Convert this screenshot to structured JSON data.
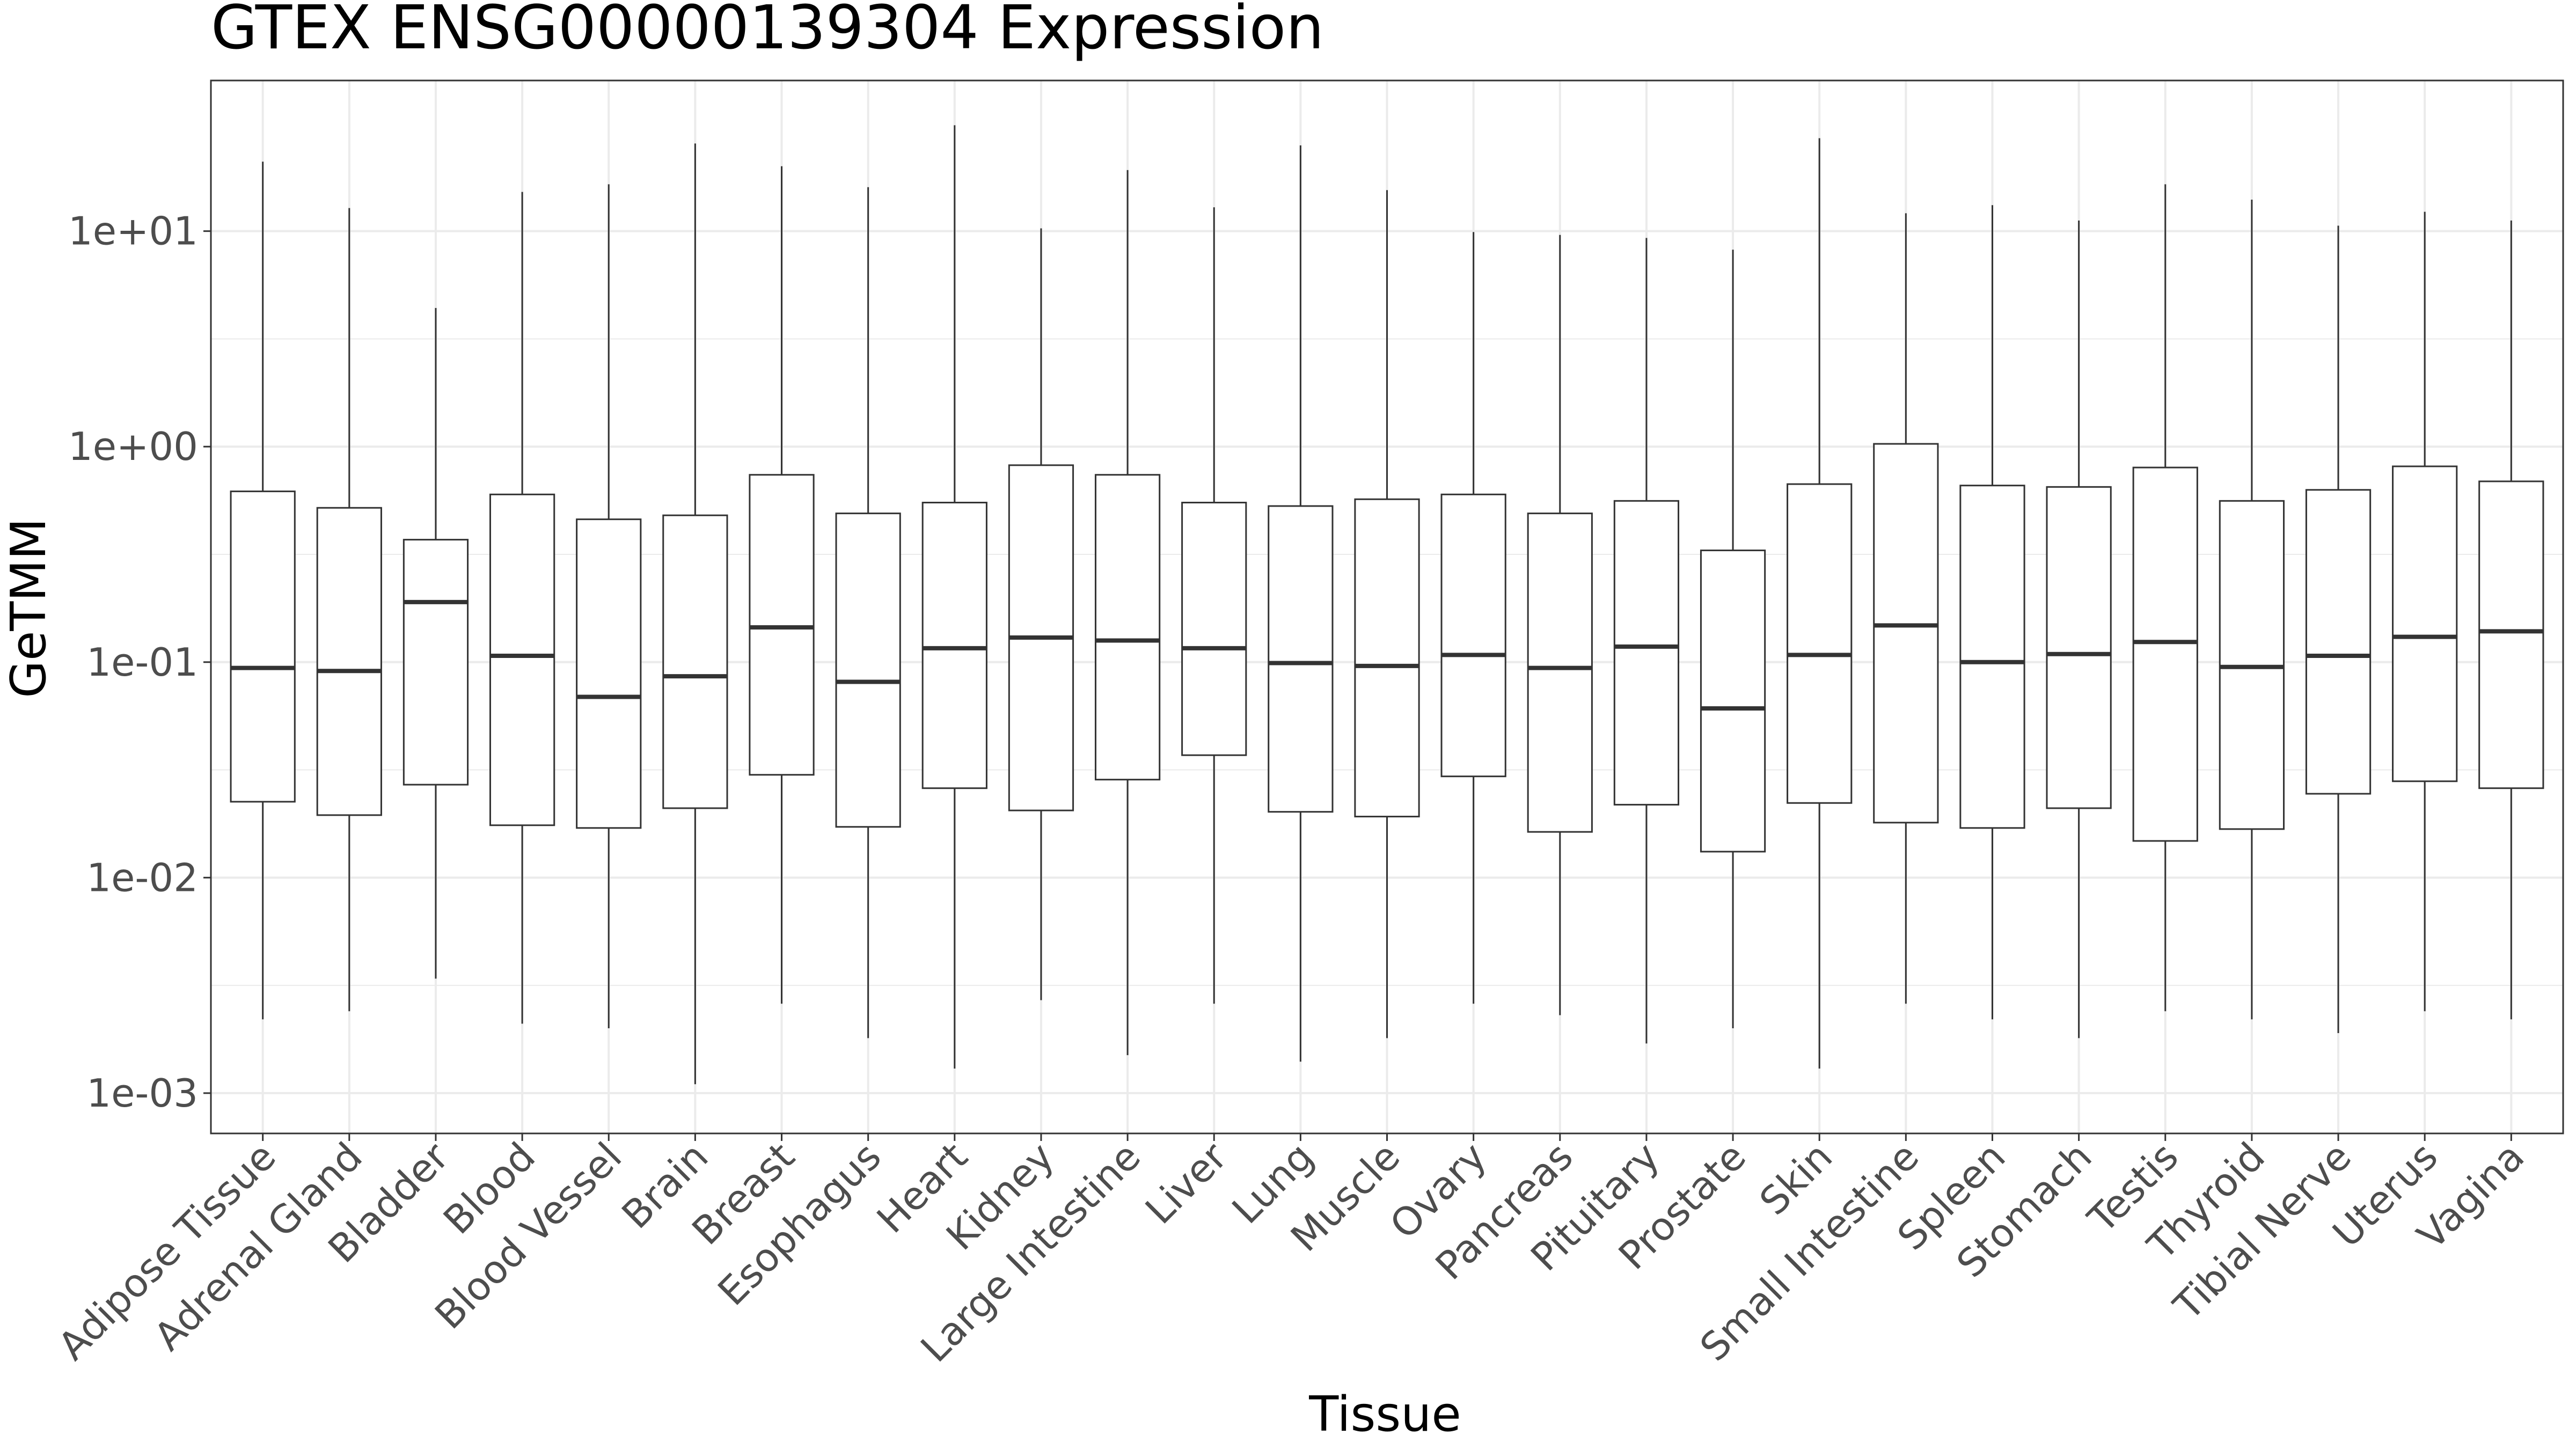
{
  "chart_data": {
    "type": "box",
    "title": "GTEX ENSG00000139304 Expression",
    "xlabel": "Tissue",
    "ylabel": "GeTMM",
    "yscale": "log10",
    "ylim": [
      0.00065,
      50
    ],
    "yticks": [
      {
        "value": 0.001,
        "label": "1e-03"
      },
      {
        "value": 0.01,
        "label": "1e-02"
      },
      {
        "value": 0.1,
        "label": "1e-01"
      },
      {
        "value": 1,
        "label": "1e+00"
      },
      {
        "value": 10,
        "label": "1e+01"
      }
    ],
    "grid": true,
    "legend": "none",
    "colors": {
      "box_fill": "#ffffff",
      "box_stroke": "#333333",
      "grid": "#ebebeb",
      "panel_border": "#333333"
    },
    "series": [
      {
        "category": "Adipose Tissue",
        "min": 0.0022,
        "q1": 0.0225,
        "median": 0.094,
        "q3": 0.62,
        "max": 21.0
      },
      {
        "category": "Adrenal Gland",
        "min": 0.0024,
        "q1": 0.0195,
        "median": 0.091,
        "q3": 0.52,
        "max": 12.8
      },
      {
        "category": "Bladder",
        "min": 0.0034,
        "q1": 0.027,
        "median": 0.19,
        "q3": 0.37,
        "max": 4.4
      },
      {
        "category": "Blood",
        "min": 0.0021,
        "q1": 0.0175,
        "median": 0.107,
        "q3": 0.6,
        "max": 15.2
      },
      {
        "category": "Blood Vessel",
        "min": 0.002,
        "q1": 0.017,
        "median": 0.069,
        "q3": 0.46,
        "max": 16.5
      },
      {
        "category": "Brain",
        "min": 0.0011,
        "q1": 0.021,
        "median": 0.086,
        "q3": 0.48,
        "max": 25.5
      },
      {
        "category": "Breast",
        "min": 0.0026,
        "q1": 0.03,
        "median": 0.145,
        "q3": 0.74,
        "max": 20.0
      },
      {
        "category": "Esophagus",
        "min": 0.0018,
        "q1": 0.0172,
        "median": 0.081,
        "q3": 0.49,
        "max": 16.0
      },
      {
        "category": "Heart",
        "min": 0.0013,
        "q1": 0.026,
        "median": 0.116,
        "q3": 0.55,
        "max": 31.0
      },
      {
        "category": "Kidney",
        "min": 0.0027,
        "q1": 0.0205,
        "median": 0.13,
        "q3": 0.82,
        "max": 10.3
      },
      {
        "category": "Large Intestine",
        "min": 0.0015,
        "q1": 0.0285,
        "median": 0.126,
        "q3": 0.74,
        "max": 19.2
      },
      {
        "category": "Liver",
        "min": 0.0026,
        "q1": 0.037,
        "median": 0.116,
        "q3": 0.55,
        "max": 12.9
      },
      {
        "category": "Lung",
        "min": 0.0014,
        "q1": 0.0202,
        "median": 0.099,
        "q3": 0.53,
        "max": 25.0
      },
      {
        "category": "Muscle",
        "min": 0.0018,
        "q1": 0.0192,
        "median": 0.096,
        "q3": 0.57,
        "max": 15.5
      },
      {
        "category": "Ovary",
        "min": 0.0026,
        "q1": 0.0295,
        "median": 0.108,
        "q3": 0.6,
        "max": 9.9
      },
      {
        "category": "Pancreas",
        "min": 0.0023,
        "q1": 0.0163,
        "median": 0.094,
        "q3": 0.49,
        "max": 9.6
      },
      {
        "category": "Pituitary",
        "min": 0.0017,
        "q1": 0.0218,
        "median": 0.118,
        "q3": 0.56,
        "max": 9.3
      },
      {
        "category": "Prostate",
        "min": 0.002,
        "q1": 0.0132,
        "median": 0.061,
        "q3": 0.33,
        "max": 8.2
      },
      {
        "category": "Skin",
        "min": 0.0013,
        "q1": 0.0222,
        "median": 0.108,
        "q3": 0.67,
        "max": 27.0
      },
      {
        "category": "Small Intestine",
        "min": 0.0026,
        "q1": 0.018,
        "median": 0.148,
        "q3": 1.03,
        "max": 12.1
      },
      {
        "category": "Spleen",
        "min": 0.0022,
        "q1": 0.017,
        "median": 0.1,
        "q3": 0.66,
        "max": 13.2
      },
      {
        "category": "Stomach",
        "min": 0.0018,
        "q1": 0.021,
        "median": 0.109,
        "q3": 0.65,
        "max": 11.2
      },
      {
        "category": "Testis",
        "min": 0.0024,
        "q1": 0.0148,
        "median": 0.124,
        "q3": 0.8,
        "max": 16.5
      },
      {
        "category": "Thyroid",
        "min": 0.0022,
        "q1": 0.0168,
        "median": 0.095,
        "q3": 0.56,
        "max": 14.0
      },
      {
        "category": "Tibial Nerve",
        "min": 0.0019,
        "q1": 0.0245,
        "median": 0.107,
        "q3": 0.63,
        "max": 10.6
      },
      {
        "category": "Uterus",
        "min": 0.0024,
        "q1": 0.028,
        "median": 0.131,
        "q3": 0.81,
        "max": 12.3
      },
      {
        "category": "Vagina",
        "min": 0.0022,
        "q1": 0.026,
        "median": 0.139,
        "q3": 0.69,
        "max": 11.2
      }
    ]
  }
}
